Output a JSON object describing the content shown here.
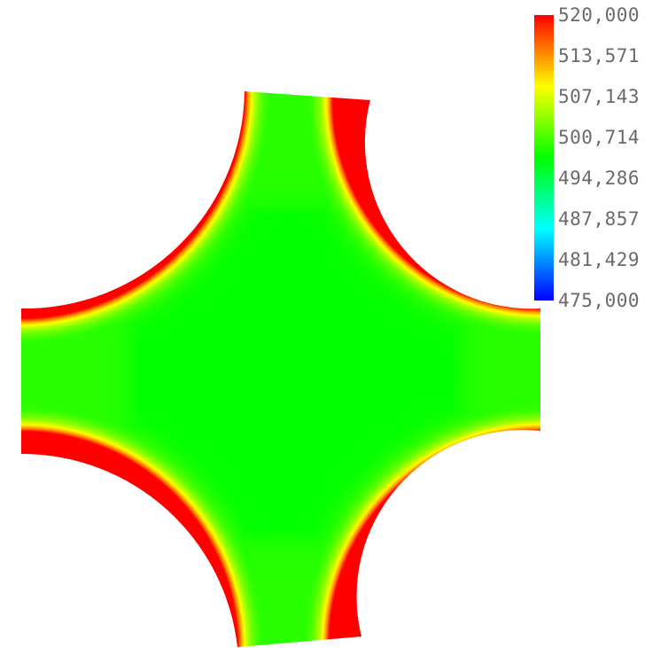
{
  "chart_data": {
    "type": "heatmap",
    "title": "",
    "value_range": [
      475.0,
      520.0
    ],
    "colormap": [
      "#0000ff",
      "#00ffff",
      "#00ff00",
      "#ffff00",
      "#ff0000"
    ],
    "colorbar": {
      "placement": "right",
      "ticks": [
        {
          "value": 520.0,
          "label": "520,000"
        },
        {
          "value": 513.571,
          "label": "513,571"
        },
        {
          "value": 507.143,
          "label": "507,143"
        },
        {
          "value": 500.714,
          "label": "500,714"
        },
        {
          "value": 494.286,
          "label": "494,286"
        },
        {
          "value": 487.857,
          "label": "487,857"
        },
        {
          "value": 481.429,
          "label": "481,429"
        },
        {
          "value": 475.0,
          "label": "475,000"
        }
      ]
    },
    "field": {
      "description": "temperature-like scalar field on a four-way cross domain with concave circular cutouts at the corners",
      "minimum_value": 475.0,
      "maximum_value": 520.0,
      "minimum_location": "center",
      "maximum_location": "concave edges"
    }
  }
}
